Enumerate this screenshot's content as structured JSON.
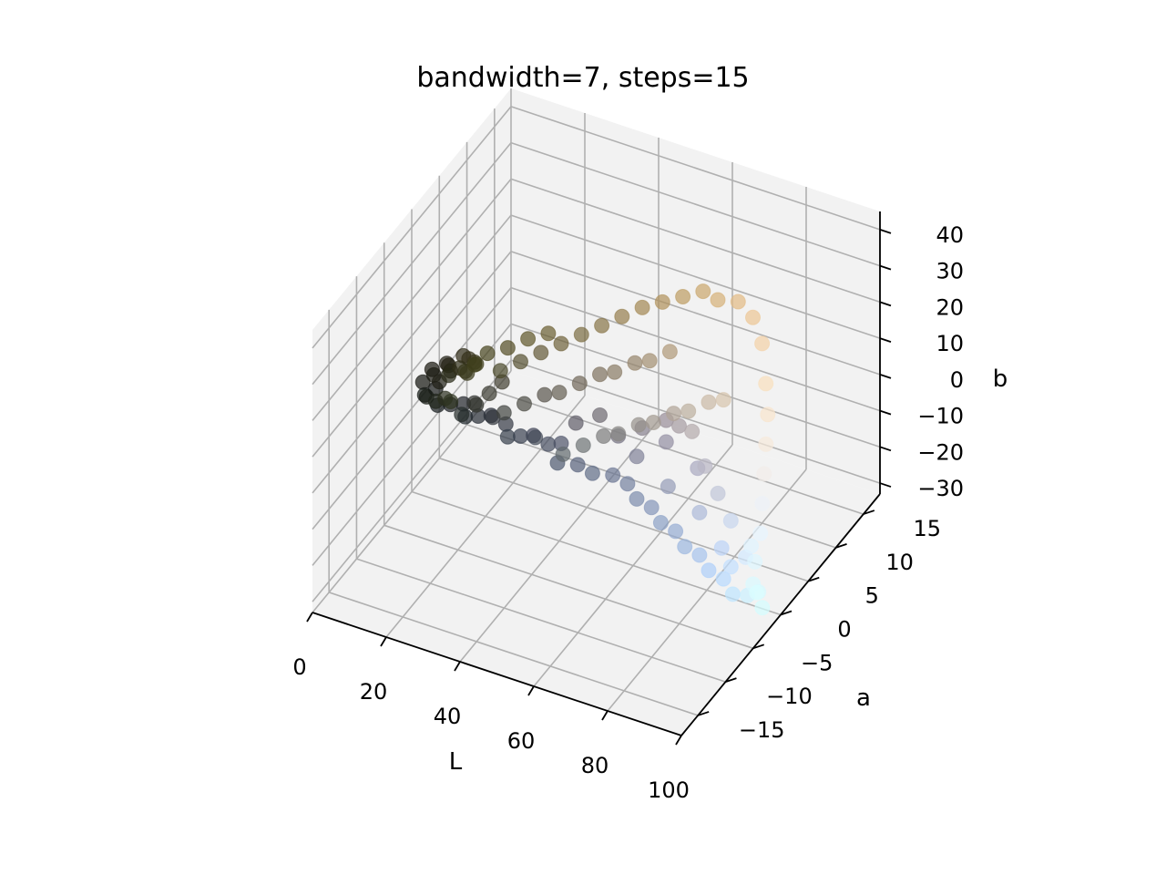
{
  "chart_data": {
    "type": "scatter",
    "projection": "3d",
    "title": "bandwidth=7, steps=15",
    "xlabel": "L",
    "ylabel": "a",
    "zlabel": "b",
    "xlim": [
      0,
      100
    ],
    "ylim": [
      -18,
      18
    ],
    "zlim": [
      -33,
      45
    ],
    "xticks": [
      "0",
      "20",
      "40",
      "60",
      "80",
      "100"
    ],
    "yticks": [
      "−15",
      "−10",
      "−5",
      "0",
      "5",
      "10",
      "15"
    ],
    "zticks": [
      "−30",
      "−20",
      "−10",
      "0",
      "10",
      "20",
      "30",
      "40"
    ],
    "grid": true,
    "pane_color": "#f2f2f2",
    "grid_color": "#b0b0b0",
    "point_alpha": 0.35,
    "point_color_encoding": "each point colored by its own Lab value",
    "series": [
      {
        "points": [
          [
            6,
            -2,
            3
          ],
          [
            7,
            -1,
            5
          ],
          [
            8,
            -3,
            2
          ],
          [
            9,
            -2,
            6
          ],
          [
            10,
            -4,
            4
          ],
          [
            11,
            -1,
            8
          ],
          [
            12,
            -3,
            7
          ],
          [
            13,
            -2,
            10
          ],
          [
            14,
            -5,
            6
          ],
          [
            15,
            -3,
            11
          ],
          [
            16,
            -4,
            12
          ],
          [
            17,
            -2,
            14
          ],
          [
            18,
            -6,
            10
          ],
          [
            19,
            -4,
            15
          ],
          [
            20,
            -3,
            16
          ],
          [
            21,
            -7,
            12
          ],
          [
            22,
            -5,
            17
          ],
          [
            23,
            -4,
            18
          ],
          [
            24,
            -6,
            19
          ],
          [
            25,
            -5,
            20
          ],
          [
            8,
            -1,
            0
          ],
          [
            10,
            -2,
            -2
          ],
          [
            12,
            -1,
            -3
          ],
          [
            14,
            0,
            -4
          ],
          [
            16,
            -1,
            -5
          ],
          [
            18,
            0,
            -6
          ],
          [
            20,
            1,
            -7
          ],
          [
            22,
            0,
            -5
          ],
          [
            24,
            1,
            -8
          ],
          [
            26,
            0,
            -9
          ],
          [
            28,
            1,
            -10
          ],
          [
            30,
            2,
            -11
          ],
          [
            32,
            1,
            -9
          ],
          [
            34,
            2,
            -12
          ],
          [
            36,
            3,
            -13
          ],
          [
            30,
            -4,
            18
          ],
          [
            34,
            -3,
            20
          ],
          [
            38,
            -2,
            22
          ],
          [
            42,
            -1,
            24
          ],
          [
            46,
            0,
            26
          ],
          [
            50,
            1,
            28
          ],
          [
            54,
            2,
            30
          ],
          [
            58,
            3,
            32
          ],
          [
            62,
            4,
            33
          ],
          [
            66,
            5,
            34
          ],
          [
            70,
            6,
            35
          ],
          [
            74,
            6,
            34
          ],
          [
            78,
            7,
            33
          ],
          [
            82,
            7,
            30
          ],
          [
            86,
            6,
            26
          ],
          [
            28,
            -2,
            2
          ],
          [
            32,
            -1,
            4
          ],
          [
            36,
            0,
            6
          ],
          [
            40,
            0,
            8
          ],
          [
            44,
            1,
            10
          ],
          [
            48,
            2,
            12
          ],
          [
            52,
            2,
            14
          ],
          [
            56,
            3,
            16
          ],
          [
            60,
            3,
            18
          ],
          [
            64,
            4,
            20
          ],
          [
            38,
            1,
            -14
          ],
          [
            42,
            2,
            -15
          ],
          [
            46,
            2,
            -16
          ],
          [
            50,
            3,
            -17
          ],
          [
            54,
            3,
            -18
          ],
          [
            58,
            2,
            -19
          ],
          [
            62,
            2,
            -20
          ],
          [
            66,
            1,
            -21
          ],
          [
            70,
            1,
            -22
          ],
          [
            74,
            0,
            -23
          ],
          [
            78,
            0,
            -24
          ],
          [
            82,
            -1,
            -25
          ],
          [
            86,
            -1,
            -26
          ],
          [
            90,
            -2,
            -27
          ],
          [
            94,
            -2,
            -26
          ],
          [
            90,
            4,
            20
          ],
          [
            92,
            3,
            14
          ],
          [
            93,
            2,
            8
          ],
          [
            94,
            1,
            2
          ],
          [
            95,
            0,
            -4
          ],
          [
            96,
            -1,
            -10
          ],
          [
            96,
            -2,
            -16
          ],
          [
            97,
            -3,
            -20
          ],
          [
            97,
            -2,
            -24
          ],
          [
            98,
            -3,
            -22
          ],
          [
            44,
            -2,
            -4
          ],
          [
            48,
            -1,
            -2
          ],
          [
            52,
            0,
            0
          ],
          [
            56,
            0,
            2
          ],
          [
            60,
            1,
            4
          ],
          [
            64,
            1,
            6
          ],
          [
            68,
            2,
            8
          ],
          [
            72,
            2,
            10
          ],
          [
            76,
            3,
            12
          ],
          [
            80,
            3,
            14
          ],
          [
            50,
            4,
            -8
          ],
          [
            55,
            5,
            -6
          ],
          [
            60,
            6,
            -4
          ],
          [
            65,
            5,
            -2
          ],
          [
            70,
            4,
            0
          ],
          [
            75,
            3,
            -6
          ],
          [
            80,
            2,
            -10
          ],
          [
            85,
            1,
            -14
          ],
          [
            70,
            5,
            -12
          ],
          [
            60,
            6,
            -10
          ],
          [
            26,
            -6,
            22
          ],
          [
            28,
            -5,
            24
          ],
          [
            32,
            -4,
            25
          ],
          [
            36,
            -3,
            27
          ],
          [
            40,
            -2,
            28
          ],
          [
            18,
            -3,
            0
          ],
          [
            20,
            -2,
            2
          ],
          [
            22,
            -3,
            4
          ],
          [
            24,
            -2,
            6
          ],
          [
            26,
            -1,
            8
          ],
          [
            40,
            3,
            -6
          ],
          [
            45,
            4,
            -4
          ],
          [
            55,
            4,
            -12
          ],
          [
            65,
            3,
            -15
          ],
          [
            75,
            2,
            -17
          ],
          [
            84,
            0,
            -20
          ],
          [
            88,
            -1,
            -22
          ],
          [
            92,
            -1,
            -18
          ],
          [
            95,
            -2,
            -12
          ],
          [
            98,
            -2,
            -28
          ]
        ]
      }
    ]
  }
}
